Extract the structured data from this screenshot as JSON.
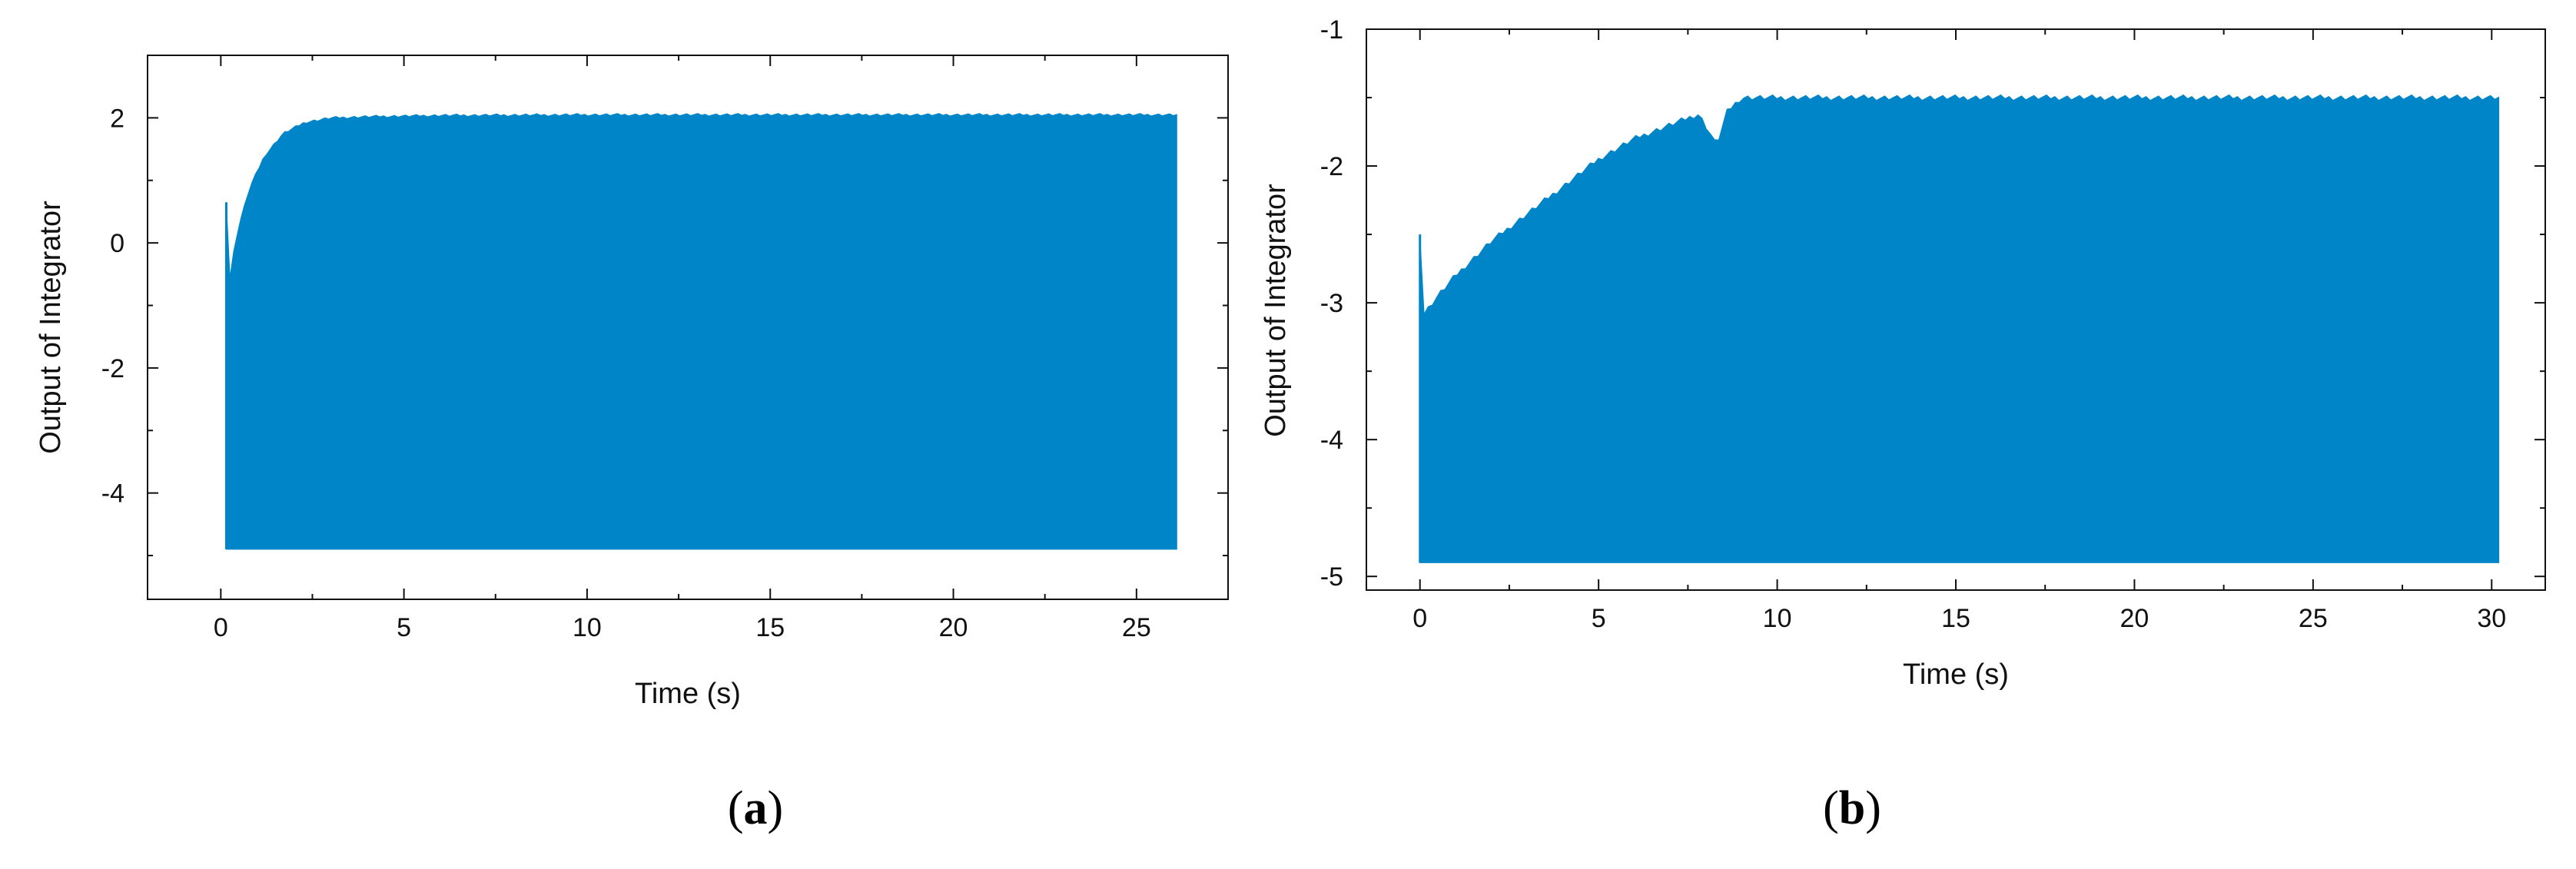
{
  "colors": {
    "series": "#0086c8",
    "axis": "#111111",
    "background": "#ffffff"
  },
  "chart_data": [
    {
      "type": "line",
      "panel_label": "a",
      "xlabel": "Time (s)",
      "ylabel": "Output of Integrator",
      "xlim": [
        -2,
        27.5
      ],
      "ylim": [
        -5.7,
        3.0
      ],
      "xticks": [
        0,
        5,
        10,
        15,
        20,
        25
      ],
      "yticks": [
        -4,
        -2,
        0,
        2
      ],
      "grid": false,
      "legend": "none",
      "series": [
        {
          "style": "dense oscillation filled band",
          "start_time": 0.15,
          "end_time": 26.1,
          "initial_spike": 0.65,
          "lower": [
            [
              0.15,
              -4.9
            ],
            [
              26.1,
              -4.9
            ]
          ],
          "upper": [
            [
              0.15,
              0.65
            ],
            [
              0.2,
              -0.8
            ],
            [
              0.3,
              -0.3
            ],
            [
              0.5,
              0.3
            ],
            [
              0.8,
              0.9
            ],
            [
              1.2,
              1.4
            ],
            [
              1.7,
              1.75
            ],
            [
              2.3,
              1.93
            ],
            [
              3.0,
              2.0
            ],
            [
              4.0,
              2.02
            ],
            [
              6.0,
              2.04
            ],
            [
              10.0,
              2.05
            ],
            [
              15.0,
              2.05
            ],
            [
              20.0,
              2.05
            ],
            [
              26.1,
              2.05
            ]
          ]
        }
      ]
    },
    {
      "type": "line",
      "panel_label": "b",
      "xlabel": "Time (s)",
      "ylabel": "Output of Integrator",
      "xlim": [
        -1.5,
        31.5
      ],
      "ylim": [
        -5.1,
        -1.0
      ],
      "xticks": [
        0,
        5,
        10,
        15,
        20,
        25,
        30
      ],
      "yticks": [
        -5,
        -4,
        -3,
        -2,
        -1
      ],
      "grid": false,
      "legend": "none",
      "series": [
        {
          "style": "dense oscillation filled band",
          "start_time": 0.0,
          "end_time": 30.2,
          "initial_spike": -2.5,
          "lower": [
            [
              0.0,
              -4.9
            ],
            [
              30.2,
              -4.9
            ]
          ],
          "upper": [
            [
              0.0,
              -2.5
            ],
            [
              0.05,
              -3.1
            ],
            [
              0.5,
              -2.95
            ],
            [
              1.0,
              -2.8
            ],
            [
              2.0,
              -2.55
            ],
            [
              3.0,
              -2.35
            ],
            [
              4.0,
              -2.15
            ],
            [
              5.0,
              -1.95
            ],
            [
              6.0,
              -1.8
            ],
            [
              7.0,
              -1.7
            ],
            [
              7.8,
              -1.62
            ],
            [
              8.1,
              -1.75
            ],
            [
              8.3,
              -1.85
            ],
            [
              8.6,
              -1.6
            ],
            [
              9.0,
              -1.5
            ],
            [
              10.0,
              -1.5
            ],
            [
              15.0,
              -1.5
            ],
            [
              20.0,
              -1.5
            ],
            [
              25.0,
              -1.5
            ],
            [
              30.2,
              -1.5
            ]
          ]
        }
      ]
    }
  ],
  "captions": {
    "a": {
      "open": "(",
      "letter": "a",
      "close": ")"
    },
    "b": {
      "open": "(",
      "letter": "b",
      "close": ")"
    }
  }
}
